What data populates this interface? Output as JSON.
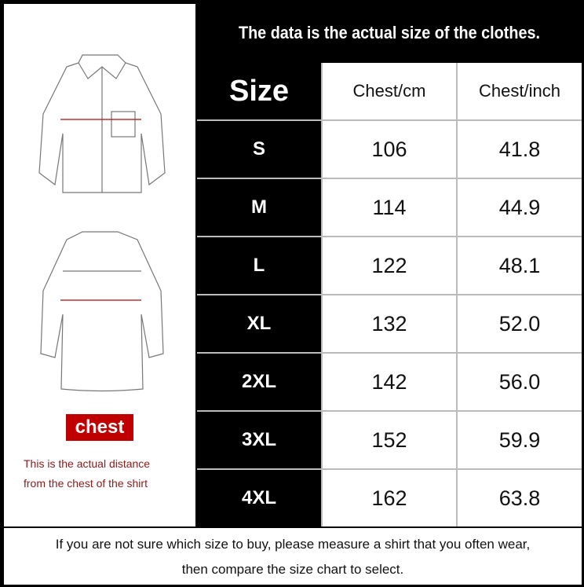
{
  "title": "The data is the actual size of the clothes.",
  "columns": [
    "Size",
    "Chest/cm",
    "Chest/inch"
  ],
  "rows": [
    [
      "S",
      "106",
      "41.8"
    ],
    [
      "M",
      "114",
      "44.9"
    ],
    [
      "L",
      "122",
      "48.1"
    ],
    [
      "XL",
      "132",
      "52.0"
    ],
    [
      "2XL",
      "142",
      "56.0"
    ],
    [
      "3XL",
      "152",
      "59.9"
    ],
    [
      "4XL",
      "162",
      "63.8"
    ]
  ],
  "legend": {
    "label": "chest",
    "note_line1": "This is the actual distance",
    "note_line2": "from the chest of the shirt",
    "accent": "#c00000"
  },
  "footer": {
    "line1": "If you are not sure which size to buy, please measure a shirt that you often wear,",
    "line2": "then compare the size chart to select."
  }
}
